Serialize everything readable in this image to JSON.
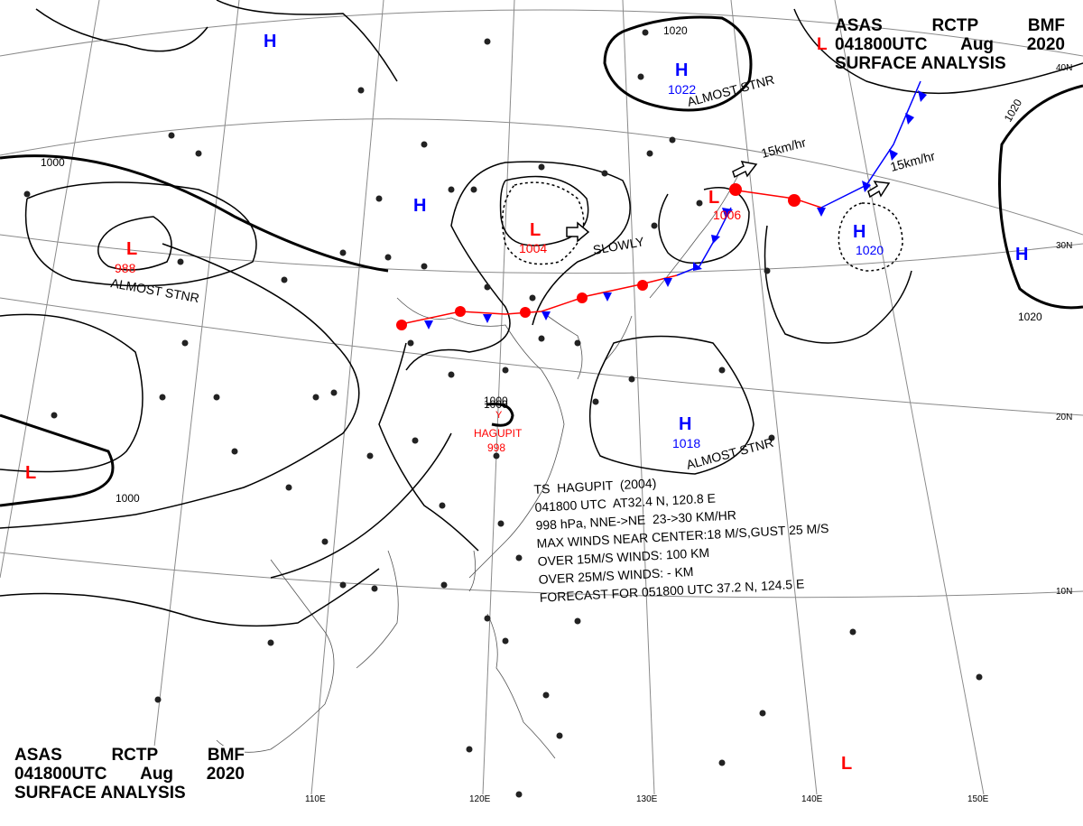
{
  "header_top": {
    "line1": [
      "ASAS",
      "RCTP",
      "BMF"
    ],
    "line2_marker": "L",
    "line2": [
      "041800UTC",
      "Aug",
      "2020"
    ],
    "line3": "SURFACE ANALYSIS"
  },
  "header_bottom": {
    "line1": [
      "ASAS",
      "RCTP",
      "BMF"
    ],
    "line2": [
      "041800UTC",
      "Aug",
      "2020"
    ],
    "line3": "SURFACE ANALYSIS"
  },
  "pressure_centers": [
    {
      "type": "H",
      "value": ""
    },
    {
      "type": "H",
      "value": "1022"
    },
    {
      "type": "H",
      "value": ""
    },
    {
      "type": "L",
      "value": "1004"
    },
    {
      "type": "L",
      "value": "988"
    },
    {
      "type": "L",
      "value": "1006"
    },
    {
      "type": "H",
      "value": "1020"
    },
    {
      "type": "H",
      "value": ""
    },
    {
      "type": "H",
      "value": "1018"
    },
    {
      "type": "L",
      "value": ""
    },
    {
      "type": "L",
      "value": ""
    }
  ],
  "isobar_labels": [
    "1020",
    "1020",
    "1020",
    "1000",
    "1000",
    "1000"
  ],
  "annotations": [
    "ALMOST STNR",
    "ALMOST STNR",
    "ALMOST STNR",
    "SLOWLY",
    "15km/hr",
    "15km/hr"
  ],
  "storm": {
    "marker": "1000",
    "name": "HAGUPIT",
    "pressure": "998"
  },
  "tropical_storm_box": [
    "TS  HAGUPIT  (2004)",
    "041800 UTC  AT32.4 N, 120.8 E",
    "998 hPa, NNE->NE  23->30 KM/HR",
    "MAX WINDS NEAR CENTER:18 M/S,GUST 25 M/S",
    "OVER 15M/S WINDS: 100 KM",
    "OVER 25M/S WINDS: - KM",
    "FORECAST FOR 051800 UTC 37.2 N, 124.5 E"
  ],
  "latitude_labels": [
    "40N",
    "30N",
    "20N",
    "10N"
  ],
  "longitude_labels": [
    "110E",
    "120E",
    "130E",
    "140E",
    "150E"
  ],
  "colors": {
    "high": "#0000ff",
    "low": "#ff0000",
    "cold_front": "#0000ff",
    "warm_front": "#ff0000",
    "isobar": "#000000",
    "grid": "#777777",
    "coast": "#444444"
  }
}
